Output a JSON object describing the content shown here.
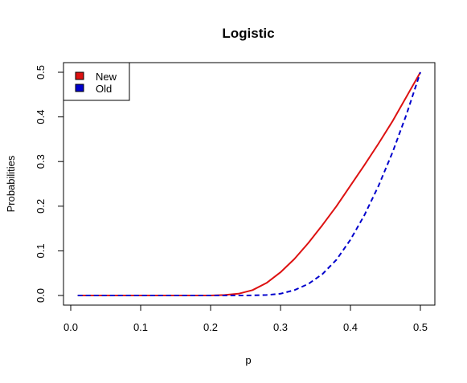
{
  "chart_data": {
    "type": "line",
    "title": "Logistic",
    "xlabel": "p",
    "ylabel": "Probabilities",
    "xlim": [
      0.0,
      0.5
    ],
    "ylim": [
      0.0,
      0.5
    ],
    "x_ticks": [
      "0.0",
      "0.1",
      "0.2",
      "0.3",
      "0.4",
      "0.5"
    ],
    "y_ticks": [
      "0.0",
      "0.1",
      "0.2",
      "0.3",
      "0.4",
      "0.5"
    ],
    "grid": false,
    "legend_position": "top-left",
    "series": [
      {
        "name": "New",
        "color": "#dd1111",
        "line_style": "solid",
        "x": [
          0.01,
          0.1,
          0.2,
          0.22,
          0.24,
          0.26,
          0.28,
          0.3,
          0.32,
          0.34,
          0.36,
          0.38,
          0.4,
          0.42,
          0.44,
          0.46,
          0.48,
          0.5
        ],
        "y": [
          0.0,
          0.0,
          0.0,
          0.001,
          0.004,
          0.012,
          0.028,
          0.052,
          0.082,
          0.118,
          0.158,
          0.2,
          0.246,
          0.292,
          0.34,
          0.39,
          0.445,
          0.5
        ]
      },
      {
        "name": "Old",
        "color": "#0000cc",
        "line_style": "dashed",
        "x": [
          0.01,
          0.1,
          0.2,
          0.25,
          0.28,
          0.3,
          0.32,
          0.34,
          0.36,
          0.38,
          0.4,
          0.42,
          0.44,
          0.46,
          0.48,
          0.5
        ],
        "y": [
          0.0,
          0.0,
          0.0,
          0.0,
          0.001,
          0.004,
          0.012,
          0.026,
          0.048,
          0.08,
          0.125,
          0.18,
          0.245,
          0.32,
          0.405,
          0.5
        ]
      }
    ]
  }
}
